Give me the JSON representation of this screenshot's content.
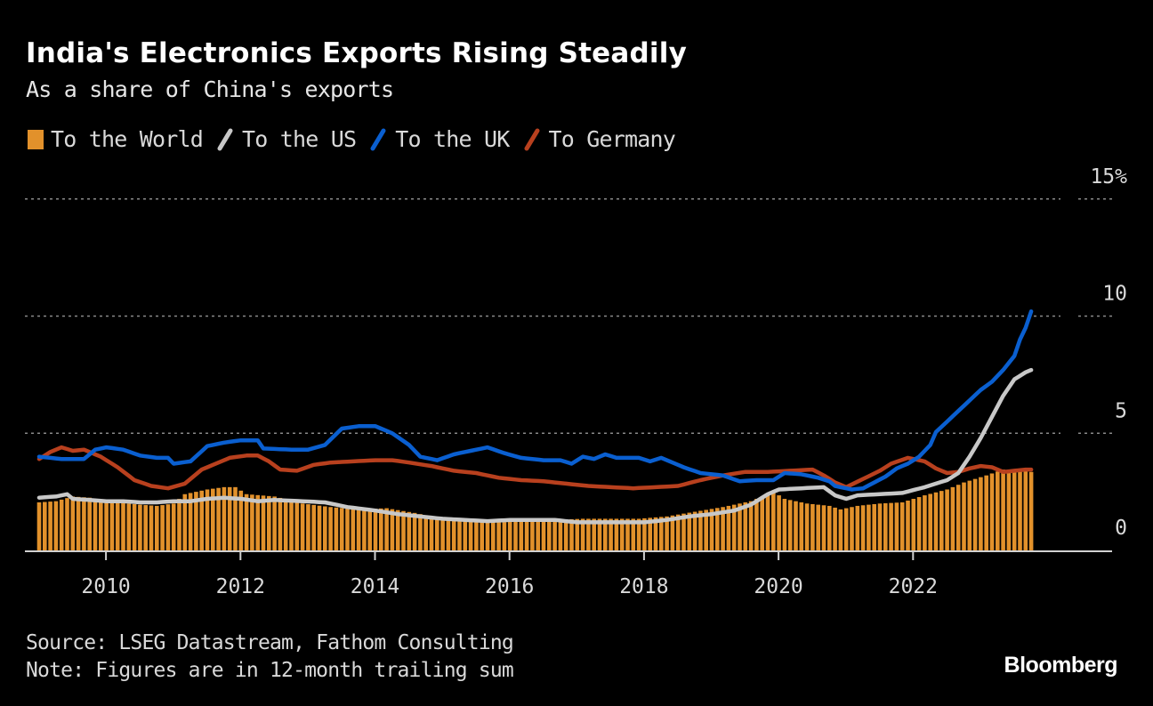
{
  "header": {
    "title": "India's Electronics Exports Rising Steadily",
    "subtitle": "As a share of China's exports"
  },
  "legend": [
    {
      "label": "To the World",
      "color": "#e2912b",
      "shape": "box"
    },
    {
      "label": "To the US",
      "color": "#c8c8c8",
      "shape": "slash"
    },
    {
      "label": "To the UK",
      "color": "#0a5fd0",
      "shape": "slash"
    },
    {
      "label": "To Germany",
      "color": "#b8401e",
      "shape": "slash"
    }
  ],
  "footer": {
    "source": "Source: LSEG Datastream, Fathom Consulting",
    "note": "Note: Figures are in 12-month trailing sum"
  },
  "brand": "Bloomberg",
  "chart_data": {
    "type": "bar+line",
    "title": "India's Electronics Exports Rising Steadily",
    "subtitle": "As a share of China's exports",
    "xlabel": "",
    "ylabel": "",
    "y_unit": "%",
    "ylim": [
      0,
      15
    ],
    "yticks": [
      0,
      5,
      10,
      15
    ],
    "ytick_labels": [
      "0",
      "5",
      "10",
      "15%"
    ],
    "y_axis_position": "right",
    "grid": "horizontal dotted",
    "legend_position": "top-left",
    "x_start": "2009-01",
    "x_end": "2023-10",
    "x_frequency": "monthly",
    "xticks": [
      "2010",
      "2012",
      "2014",
      "2016",
      "2018",
      "2020",
      "2022"
    ],
    "anchors": {
      "To the World": [
        [
          0,
          2.05
        ],
        [
          3,
          2.1
        ],
        [
          6,
          2.3
        ],
        [
          9,
          2.25
        ],
        [
          12,
          2.1
        ],
        [
          18,
          1.95
        ],
        [
          21,
          1.9
        ],
        [
          24,
          2.0
        ],
        [
          26,
          2.4
        ],
        [
          30,
          2.6
        ],
        [
          33,
          2.7
        ],
        [
          35,
          2.7
        ],
        [
          37,
          2.4
        ],
        [
          42,
          2.3
        ],
        [
          47,
          2.0
        ],
        [
          52,
          1.85
        ],
        [
          57,
          1.75
        ],
        [
          62,
          1.8
        ],
        [
          67,
          1.6
        ],
        [
          72,
          1.35
        ],
        [
          77,
          1.3
        ],
        [
          82,
          1.2
        ],
        [
          87,
          1.25
        ],
        [
          92,
          1.3
        ],
        [
          97,
          1.35
        ],
        [
          102,
          1.35
        ],
        [
          107,
          1.35
        ],
        [
          112,
          1.45
        ],
        [
          117,
          1.65
        ],
        [
          122,
          1.85
        ],
        [
          127,
          2.1
        ],
        [
          131,
          2.5
        ],
        [
          133,
          2.2
        ],
        [
          137,
          2.0
        ],
        [
          141,
          1.9
        ],
        [
          143,
          1.75
        ],
        [
          146,
          1.9
        ],
        [
          150,
          2.0
        ],
        [
          154,
          2.05
        ],
        [
          158,
          2.35
        ],
        [
          162,
          2.6
        ],
        [
          165,
          2.9
        ],
        [
          169,
          3.2
        ],
        [
          172,
          3.45
        ],
        [
          175,
          3.4
        ],
        [
          177,
          3.35
        ]
      ],
      "To the US": [
        [
          0,
          2.25
        ],
        [
          3,
          2.3
        ],
        [
          5,
          2.4
        ],
        [
          6,
          2.2
        ],
        [
          9,
          2.15
        ],
        [
          12,
          2.1
        ],
        [
          15,
          2.1
        ],
        [
          18,
          2.05
        ],
        [
          21,
          2.05
        ],
        [
          24,
          2.1
        ],
        [
          27,
          2.1
        ],
        [
          30,
          2.2
        ],
        [
          33,
          2.25
        ],
        [
          36,
          2.2
        ],
        [
          39,
          2.1
        ],
        [
          42,
          2.15
        ],
        [
          47,
          2.1
        ],
        [
          51,
          2.05
        ],
        [
          55,
          1.85
        ],
        [
          60,
          1.7
        ],
        [
          64,
          1.55
        ],
        [
          68,
          1.45
        ],
        [
          72,
          1.35
        ],
        [
          76,
          1.3
        ],
        [
          80,
          1.25
        ],
        [
          84,
          1.3
        ],
        [
          88,
          1.3
        ],
        [
          92,
          1.3
        ],
        [
          96,
          1.2
        ],
        [
          100,
          1.2
        ],
        [
          104,
          1.2
        ],
        [
          108,
          1.2
        ],
        [
          112,
          1.3
        ],
        [
          116,
          1.45
        ],
        [
          120,
          1.55
        ],
        [
          124,
          1.7
        ],
        [
          127,
          1.95
        ],
        [
          130,
          2.4
        ],
        [
          132,
          2.6
        ],
        [
          136,
          2.65
        ],
        [
          140,
          2.7
        ],
        [
          142,
          2.35
        ],
        [
          144,
          2.2
        ],
        [
          146,
          2.35
        ],
        [
          150,
          2.4
        ],
        [
          154,
          2.45
        ],
        [
          158,
          2.7
        ],
        [
          162,
          3.0
        ],
        [
          164,
          3.3
        ],
        [
          166,
          4.0
        ],
        [
          168,
          4.8
        ],
        [
          170,
          5.7
        ],
        [
          172,
          6.6
        ],
        [
          174,
          7.3
        ],
        [
          176,
          7.6
        ],
        [
          177,
          7.7
        ]
      ],
      "To the UK": [
        [
          0,
          4.0
        ],
        [
          2,
          3.95
        ],
        [
          4,
          3.9
        ],
        [
          8,
          3.9
        ],
        [
          10,
          4.3
        ],
        [
          12,
          4.4
        ],
        [
          15,
          4.3
        ],
        [
          18,
          4.05
        ],
        [
          21,
          3.95
        ],
        [
          23,
          3.95
        ],
        [
          24,
          3.7
        ],
        [
          27,
          3.8
        ],
        [
          30,
          4.45
        ],
        [
          33,
          4.6
        ],
        [
          36,
          4.7
        ],
        [
          39,
          4.7
        ],
        [
          40,
          4.35
        ],
        [
          45,
          4.3
        ],
        [
          48,
          4.3
        ],
        [
          51,
          4.5
        ],
        [
          54,
          5.2
        ],
        [
          57,
          5.3
        ],
        [
          60,
          5.3
        ],
        [
          63,
          5.0
        ],
        [
          66,
          4.5
        ],
        [
          68,
          4.0
        ],
        [
          71,
          3.85
        ],
        [
          74,
          4.1
        ],
        [
          77,
          4.25
        ],
        [
          80,
          4.4
        ],
        [
          83,
          4.15
        ],
        [
          86,
          3.95
        ],
        [
          90,
          3.85
        ],
        [
          93,
          3.85
        ],
        [
          95,
          3.7
        ],
        [
          97,
          4.0
        ],
        [
          99,
          3.9
        ],
        [
          101,
          4.1
        ],
        [
          103,
          3.95
        ],
        [
          107,
          3.95
        ],
        [
          109,
          3.8
        ],
        [
          111,
          3.95
        ],
        [
          115,
          3.55
        ],
        [
          118,
          3.3
        ],
        [
          122,
          3.2
        ],
        [
          125,
          2.95
        ],
        [
          128,
          3.0
        ],
        [
          131,
          3.0
        ],
        [
          133,
          3.3
        ],
        [
          136,
          3.25
        ],
        [
          139,
          3.1
        ],
        [
          141,
          2.95
        ],
        [
          142,
          2.75
        ],
        [
          145,
          2.6
        ],
        [
          147,
          2.65
        ],
        [
          149,
          2.9
        ],
        [
          151,
          3.15
        ],
        [
          153,
          3.5
        ],
        [
          155,
          3.7
        ],
        [
          157,
          4.0
        ],
        [
          159,
          4.5
        ],
        [
          160,
          5.05
        ],
        [
          162,
          5.5
        ],
        [
          164,
          5.95
        ],
        [
          166,
          6.4
        ],
        [
          168,
          6.85
        ],
        [
          170,
          7.2
        ],
        [
          172,
          7.7
        ],
        [
          174,
          8.3
        ],
        [
          175,
          9.0
        ],
        [
          176,
          9.5
        ],
        [
          177,
          10.2
        ],
        [
          178,
          9.95
        ]
      ],
      "To Germany": [
        [
          0,
          3.9
        ],
        [
          2,
          4.2
        ],
        [
          4,
          4.4
        ],
        [
          6,
          4.25
        ],
        [
          8,
          4.3
        ],
        [
          11,
          4.0
        ],
        [
          14,
          3.55
        ],
        [
          17,
          3.0
        ],
        [
          20,
          2.75
        ],
        [
          23,
          2.65
        ],
        [
          26,
          2.85
        ],
        [
          29,
          3.45
        ],
        [
          31,
          3.65
        ],
        [
          34,
          3.95
        ],
        [
          37,
          4.05
        ],
        [
          39,
          4.05
        ],
        [
          41,
          3.8
        ],
        [
          43,
          3.45
        ],
        [
          46,
          3.4
        ],
        [
          49,
          3.65
        ],
        [
          52,
          3.75
        ],
        [
          56,
          3.8
        ],
        [
          60,
          3.85
        ],
        [
          63,
          3.85
        ],
        [
          66,
          3.75
        ],
        [
          70,
          3.6
        ],
        [
          74,
          3.4
        ],
        [
          78,
          3.3
        ],
        [
          82,
          3.1
        ],
        [
          86,
          3.0
        ],
        [
          90,
          2.95
        ],
        [
          94,
          2.85
        ],
        [
          98,
          2.75
        ],
        [
          102,
          2.7
        ],
        [
          106,
          2.65
        ],
        [
          110,
          2.7
        ],
        [
          114,
          2.75
        ],
        [
          118,
          3.0
        ],
        [
          122,
          3.2
        ],
        [
          126,
          3.35
        ],
        [
          130,
          3.35
        ],
        [
          134,
          3.4
        ],
        [
          138,
          3.45
        ],
        [
          140,
          3.2
        ],
        [
          142,
          2.9
        ],
        [
          144,
          2.7
        ],
        [
          147,
          3.05
        ],
        [
          150,
          3.4
        ],
        [
          152,
          3.7
        ],
        [
          155,
          3.95
        ],
        [
          158,
          3.8
        ],
        [
          160,
          3.5
        ],
        [
          162,
          3.3
        ],
        [
          164,
          3.35
        ],
        [
          166,
          3.5
        ],
        [
          168,
          3.6
        ],
        [
          170,
          3.55
        ],
        [
          172,
          3.35
        ],
        [
          174,
          3.4
        ],
        [
          176,
          3.45
        ],
        [
          177,
          3.45
        ]
      ]
    },
    "series": [
      {
        "name": "To the World",
        "type": "bar",
        "color": "#e2912b"
      },
      {
        "name": "To the US",
        "type": "line",
        "color": "#c8c8c8"
      },
      {
        "name": "To the UK",
        "type": "line",
        "color": "#0a5fd0"
      },
      {
        "name": "To Germany",
        "type": "line",
        "color": "#b8401e"
      }
    ],
    "end_values": {
      "To the World": 3.35,
      "To the US": 7.7,
      "To the UK": 9.95,
      "To Germany": 3.45
    }
  }
}
